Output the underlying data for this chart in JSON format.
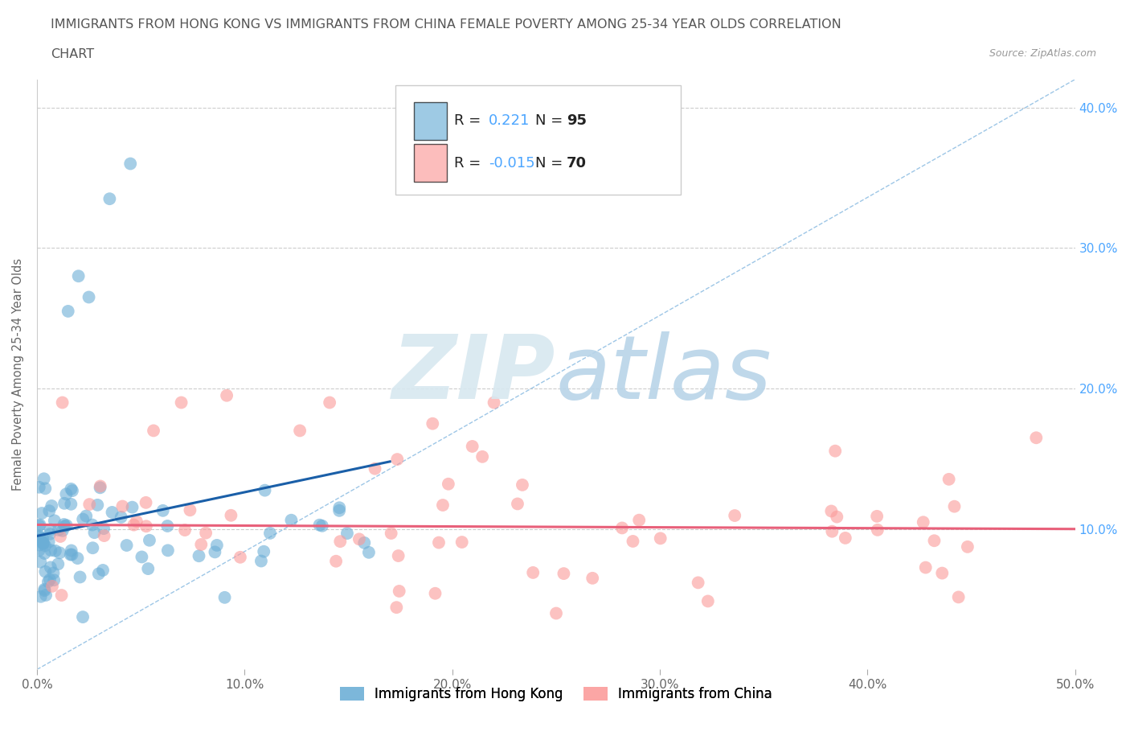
{
  "title_line1": "IMMIGRANTS FROM HONG KONG VS IMMIGRANTS FROM CHINA FEMALE POVERTY AMONG 25-34 YEAR OLDS CORRELATION",
  "title_line2": "CHART",
  "source_text": "Source: ZipAtlas.com",
  "ylabel": "Female Poverty Among 25-34 Year Olds",
  "xlim": [
    0.0,
    0.5
  ],
  "ylim": [
    0.0,
    0.42
  ],
  "xticklabels": [
    "0.0%",
    "10.0%",
    "20.0%",
    "30.0%",
    "40.0%",
    "50.0%"
  ],
  "ytick_vals": [
    0.0,
    0.1,
    0.2,
    0.3,
    0.4
  ],
  "yticklabels_right": [
    "",
    "10.0%",
    "20.0%",
    "30.0%",
    "40.0%"
  ],
  "hk_color": "#6baed6",
  "china_color": "#fb9a99",
  "hk_line_color": "#1a5fa8",
  "china_line_color": "#e8607a",
  "diag_line_color": "#85b8e0",
  "hk_R": 0.221,
  "hk_N": 95,
  "china_R": -0.015,
  "china_N": 70,
  "background_color": "#ffffff",
  "watermark_zip": "ZIP",
  "watermark_atlas": "atlas",
  "watermark_color_zip": "#d8e8f0",
  "watermark_color_atlas": "#b8d4e8",
  "legend_label_hk": "Immigrants from Hong Kong",
  "legend_label_china": "Immigrants from China",
  "hk_trend_x0": 0.0,
  "hk_trend_y0": 0.095,
  "hk_trend_x1": 0.17,
  "hk_trend_y1": 0.148,
  "china_trend_x0": 0.0,
  "china_trend_y0": 0.103,
  "china_trend_x1": 0.5,
  "china_trend_y1": 0.1
}
